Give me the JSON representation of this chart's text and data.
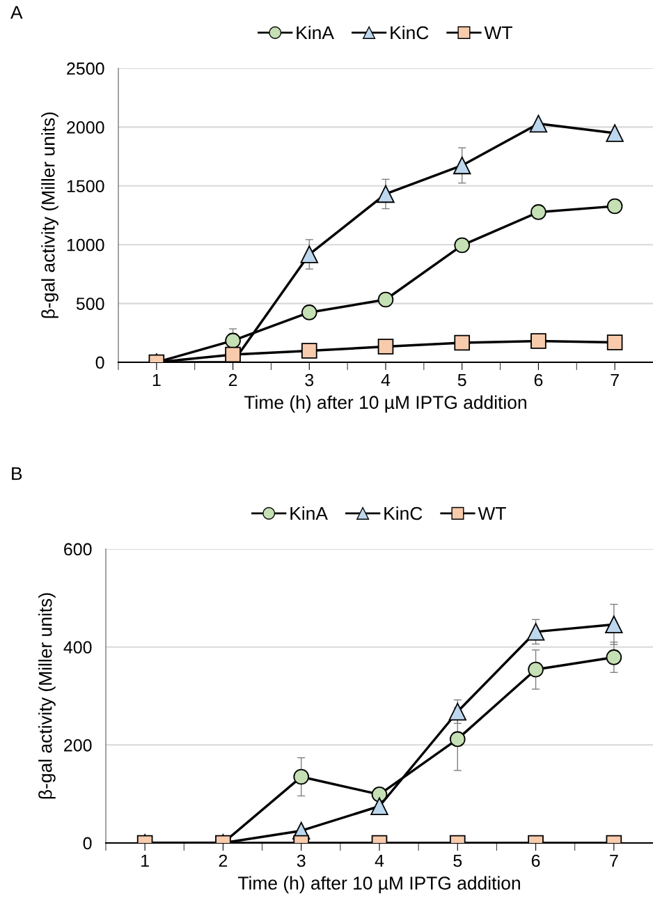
{
  "chart_data": [
    {
      "type": "line",
      "annotations": [
        "A"
      ],
      "xlabel": "Time (h) after 10 µM IPTG addition",
      "ylabel": "β-gal activity (Miller units)",
      "categories": [
        "1",
        "2",
        "3",
        "4",
        "5",
        "6",
        "7"
      ],
      "ylim": [
        0,
        2500
      ],
      "yticks": [
        0,
        500,
        1000,
        1500,
        2000,
        2500
      ],
      "grid": "y",
      "legend": "top",
      "line_style": "solid",
      "series": [
        {
          "name": "KinA",
          "color": "#c5e0b4",
          "marker": "circle",
          "values": [
            0,
            184,
            424,
            533,
            995,
            1277,
            1327
          ],
          "errors": [
            null,
            100,
            null,
            null,
            null,
            null,
            null
          ]
        },
        {
          "name": "KinC",
          "color": "#bdd7ee",
          "marker": "triangle",
          "values": [
            0,
            0,
            918,
            1431,
            1674,
            2029,
            1949
          ],
          "errors": [
            null,
            null,
            125,
            125,
            150,
            null,
            null
          ]
        },
        {
          "name": "WT",
          "color": "#f8cbad",
          "marker": "square",
          "values": [
            0,
            65,
            98,
            133,
            166,
            181,
            169
          ]
        }
      ]
    },
    {
      "type": "line",
      "annotations": [
        "B"
      ],
      "xlabel": "Time (h) after 10 µM IPTG addition",
      "ylabel": "β-gal activity (Miller units)",
      "categories": [
        "1",
        "2",
        "3",
        "4",
        "5",
        "6",
        "7"
      ],
      "ylim": [
        0,
        600
      ],
      "yticks": [
        0,
        200,
        400,
        600
      ],
      "grid": "y",
      "legend": "top",
      "line_style": "solid",
      "series": [
        {
          "name": "KinA",
          "color": "#c5e0b4",
          "marker": "circle",
          "values": [
            0,
            0,
            135,
            99,
            212,
            354,
            379
          ],
          "errors": [
            null,
            null,
            39,
            null,
            64,
            40,
            31
          ]
        },
        {
          "name": "KinC",
          "color": "#bdd7ee",
          "marker": "triangle",
          "values": [
            0,
            0,
            25,
            75,
            268,
            431,
            446
          ],
          "errors": [
            null,
            null,
            null,
            null,
            24,
            25,
            41
          ]
        },
        {
          "name": "WT",
          "color": "#f8cbad",
          "marker": "square",
          "values": [
            0,
            0,
            0,
            0,
            0,
            0,
            0
          ]
        }
      ]
    }
  ]
}
